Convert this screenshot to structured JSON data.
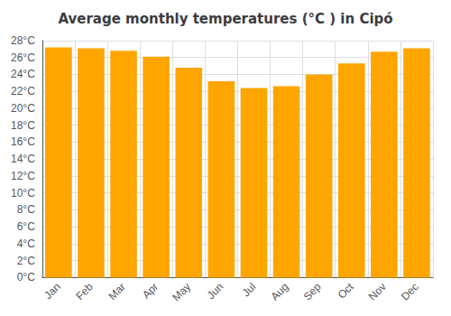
{
  "chart_data": {
    "type": "bar",
    "title": "Average monthly temperatures (°C ) in Cipó",
    "categories": [
      "Jan",
      "Feb",
      "Mar",
      "Apr",
      "May",
      "Jun",
      "Jul",
      "Aug",
      "Sep",
      "Oct",
      "Nov",
      "Dec"
    ],
    "values": [
      27.2,
      27.1,
      26.8,
      26.1,
      24.8,
      23.2,
      22.4,
      22.6,
      24.0,
      25.3,
      26.7,
      27.1
    ],
    "color": "#FFA500",
    "ylim": [
      0,
      28
    ],
    "yticks": [
      {
        "value": 0,
        "label": "0°C"
      },
      {
        "value": 2,
        "label": "2°C"
      },
      {
        "value": 4,
        "label": "4°C"
      },
      {
        "value": 6,
        "label": "6°C"
      },
      {
        "value": 8,
        "label": "8°C"
      },
      {
        "value": 10,
        "label": "10°C"
      },
      {
        "value": 12,
        "label": "12°C"
      },
      {
        "value": 14,
        "label": "14°C"
      },
      {
        "value": 16,
        "label": "16°C"
      },
      {
        "value": 18,
        "label": "18°C"
      },
      {
        "value": 20,
        "label": "20°C"
      },
      {
        "value": 22,
        "label": "22°C"
      },
      {
        "value": 24,
        "label": "24°C"
      },
      {
        "value": 26,
        "label": "26°C"
      },
      {
        "value": 28,
        "label": "28°C"
      }
    ],
    "grid": true
  }
}
